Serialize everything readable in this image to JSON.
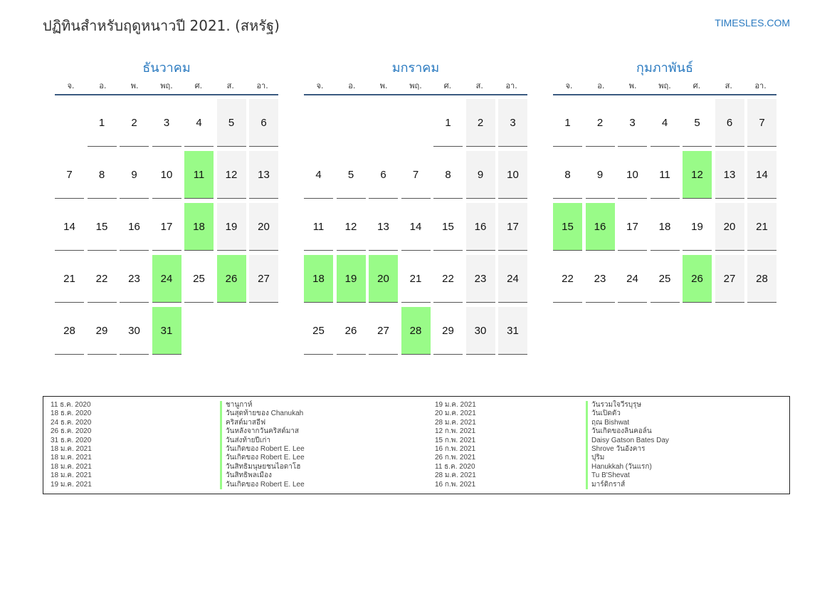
{
  "header": {
    "title": "ปฏิทินสำหรับฤดูหนาวปี 2021. (สหรัฐ)",
    "brand": "TIMESLES.COM"
  },
  "weekdays": [
    "จ.",
    "อ.",
    "พ.",
    "พฤ.",
    "ศ.",
    "ส.",
    "อา."
  ],
  "colors": {
    "holiday": "#99fb88",
    "weekend": "#f3f3f3",
    "accent": "#2a7ac0"
  },
  "months": [
    {
      "name": "ธันวาคม",
      "offset": 1,
      "days": 31,
      "holidays": [
        11,
        18,
        24,
        26,
        31
      ]
    },
    {
      "name": "มกราคม",
      "offset": 4,
      "days": 31,
      "holidays": [
        18,
        19,
        20,
        28
      ]
    },
    {
      "name": "กุมภาพันธ์",
      "offset": 0,
      "days": 28,
      "holidays": [
        12,
        15,
        16,
        26
      ]
    }
  ],
  "holiday_list": [
    {
      "date": "11 ธ.ค. 2020",
      "name": "ชานูกาห์"
    },
    {
      "date": "18 ธ.ค. 2020",
      "name": "วันสุดท้ายของ Chanukah"
    },
    {
      "date": "24 ธ.ค. 2020",
      "name": "คริสต์มาสอีฟ"
    },
    {
      "date": "26 ธ.ค. 2020",
      "name": "วันหลังจากวันคริสต์มาส"
    },
    {
      "date": "31 ธ.ค. 2020",
      "name": "วันส่งท้ายปีเก่า"
    },
    {
      "date": "18 ม.ค. 2021",
      "name": "วันเกิดของ Robert E. Lee"
    },
    {
      "date": "18 ม.ค. 2021",
      "name": "วันเกิดของ Robert E. Lee"
    },
    {
      "date": "18 ม.ค. 2021",
      "name": "วันสิทธิมนุษยชนไอดาโฮ"
    },
    {
      "date": "18 ม.ค. 2021",
      "name": "วันสิทธิพลเมือง"
    },
    {
      "date": "19 ม.ค. 2021",
      "name": "วันเกิดของ Robert E. Lee"
    },
    {
      "date": "19 ม.ค. 2021",
      "name": "วันรวมใจวีรบุรุษ"
    },
    {
      "date": "20 ม.ค. 2021",
      "name": "วันเปิดตัว"
    },
    {
      "date": "28 ม.ค. 2021",
      "name": "ฤณ Bishwat"
    },
    {
      "date": "12 ก.พ. 2021",
      "name": "วันเกิดของลินคอล์น"
    },
    {
      "date": "15 ก.พ. 2021",
      "name": "Daisy Gatson Bates Day"
    },
    {
      "date": "16 ก.พ. 2021",
      "name": "Shrove วันอังคาร"
    },
    {
      "date": "26 ก.พ. 2021",
      "name": "ปุริม"
    },
    {
      "date": "11 ธ.ค. 2020",
      "name": "Hanukkah (วันแรก)"
    },
    {
      "date": "28 ม.ค. 2021",
      "name": "Tu B'Shevat"
    },
    {
      "date": "16 ก.พ. 2021",
      "name": "มาร์ดิกราส์"
    }
  ]
}
